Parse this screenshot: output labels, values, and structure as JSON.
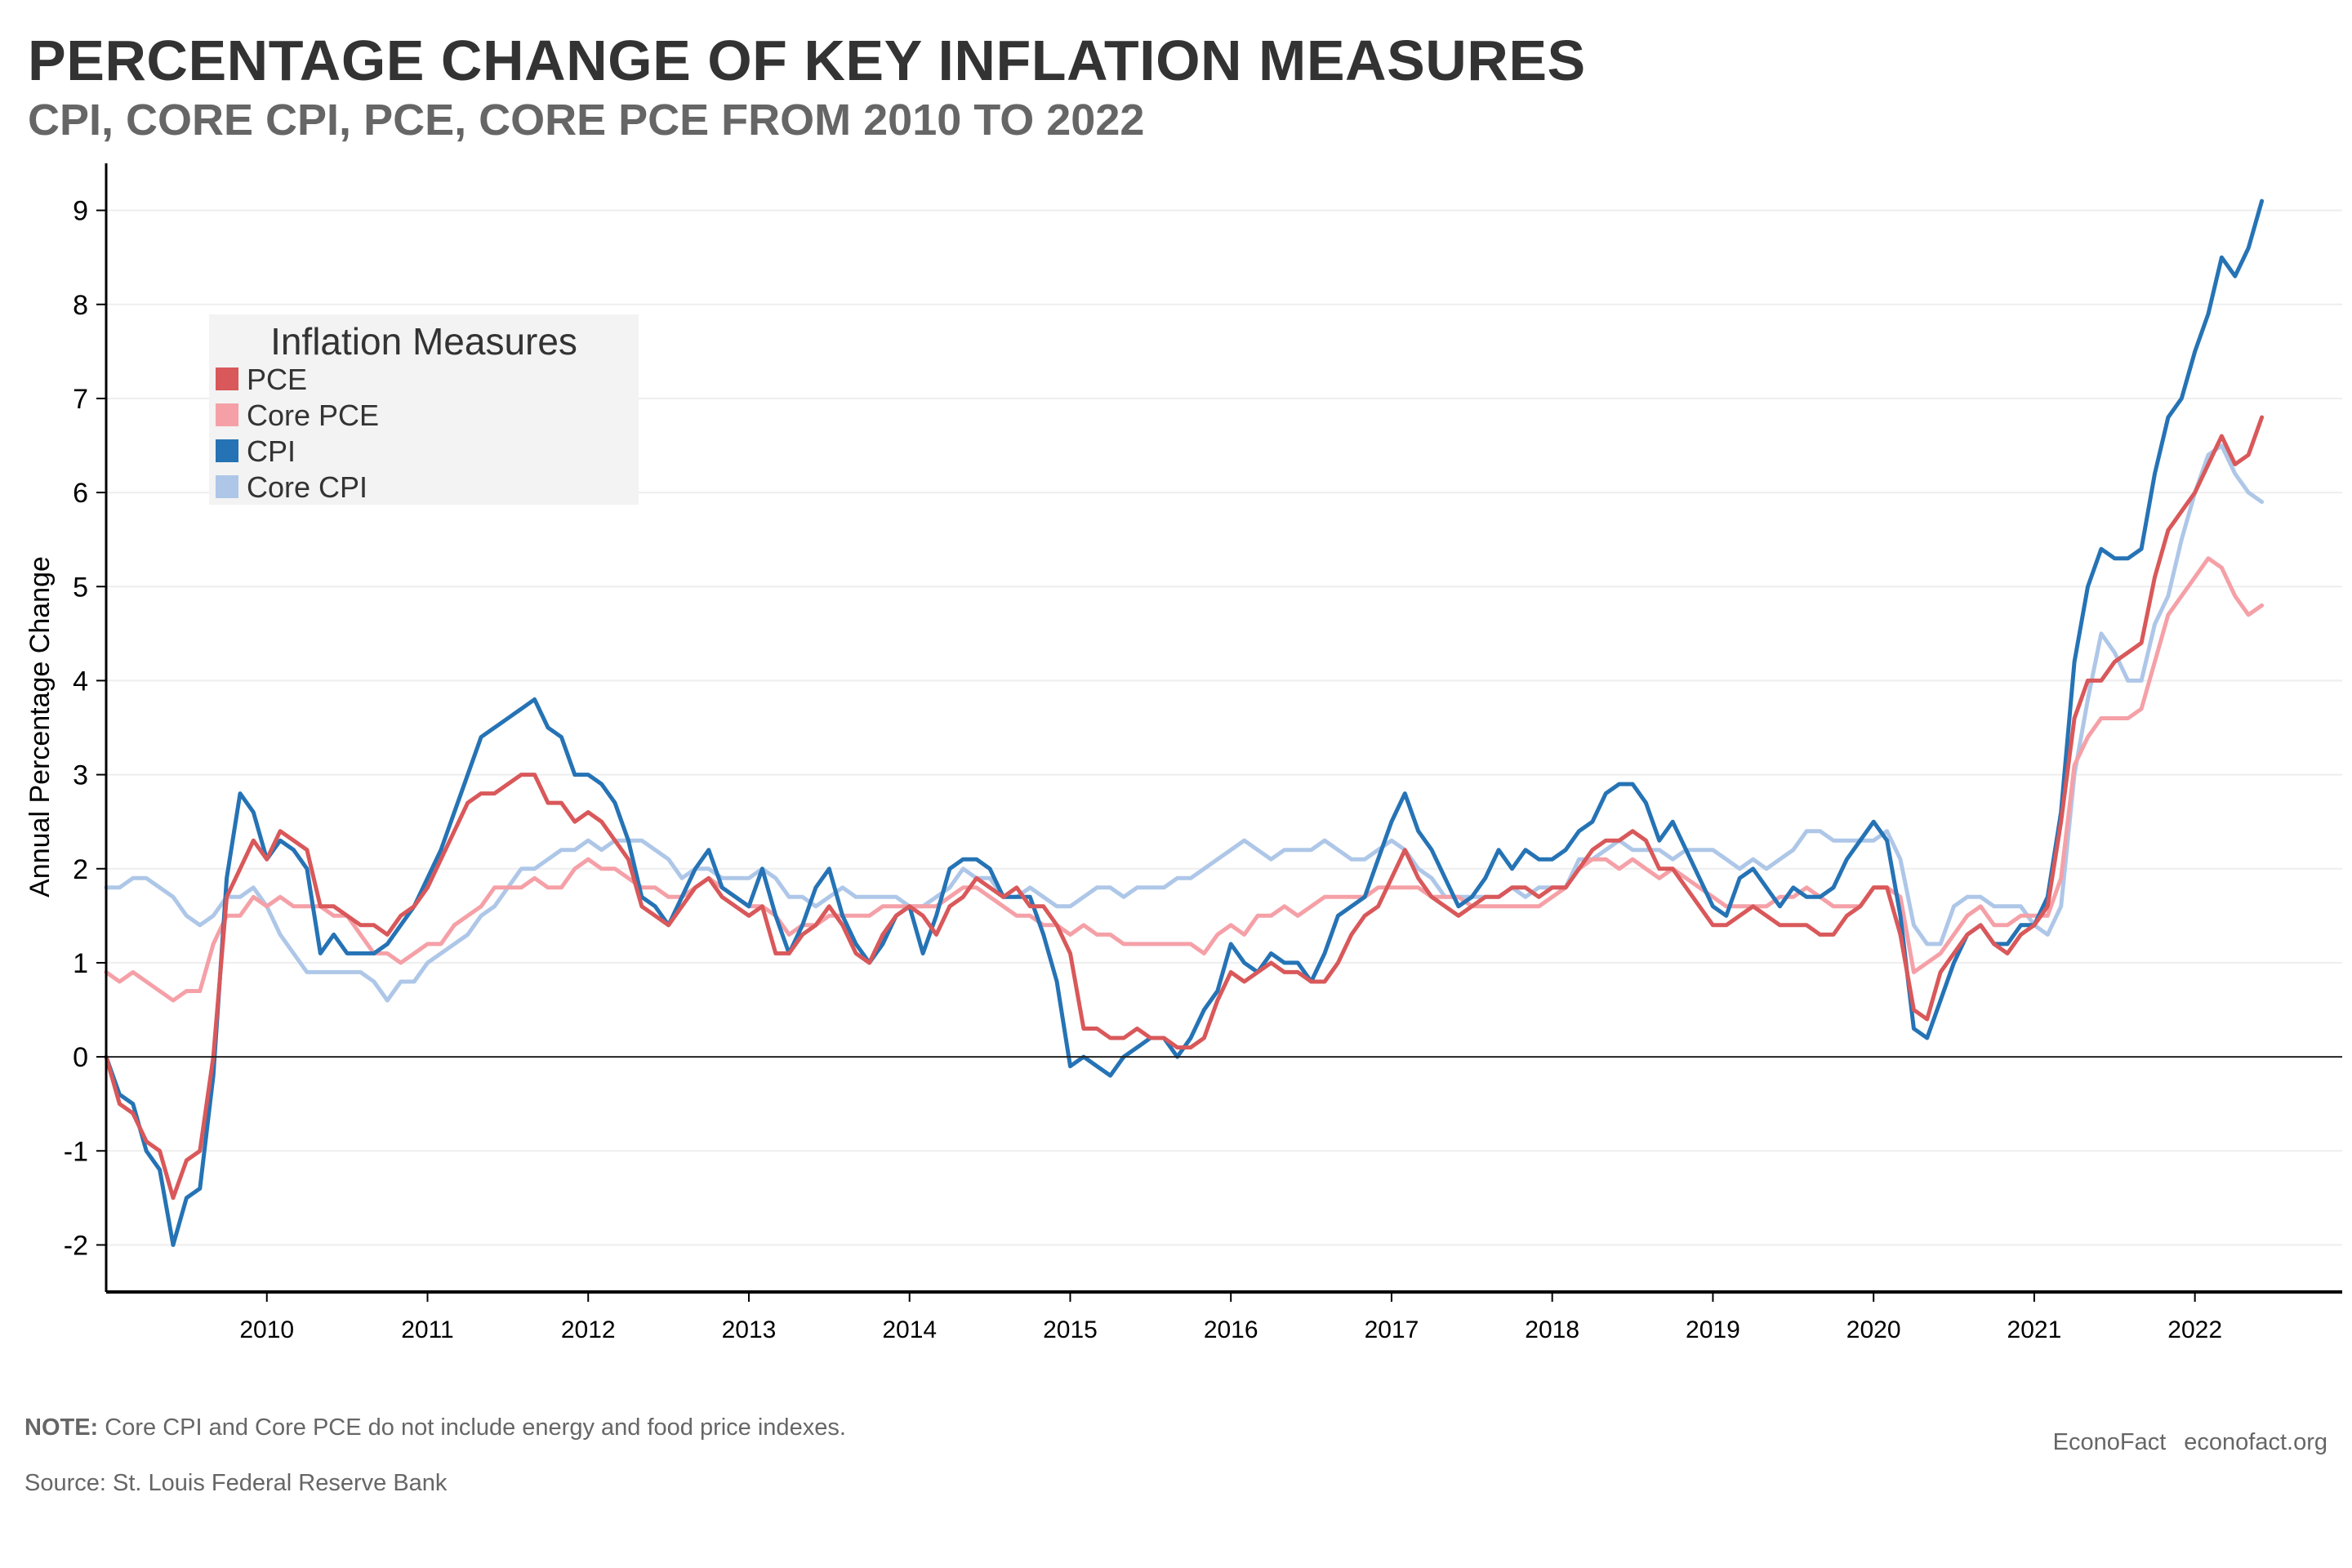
{
  "header": {
    "title": "PERCENTAGE CHANGE OF KEY INFLATION MEASURES",
    "subtitle": "CPI, CORE CPI, PCE, CORE PCE FROM 2010 TO 2022"
  },
  "footer": {
    "note_label": "NOTE:",
    "note_text": "Core CPI and Core PCE do not include energy and food price indexes.",
    "source": "Source: St. Louis Federal Reserve Bank",
    "brand": "EconoFact",
    "url": "econofact.org"
  },
  "chart_data": {
    "type": "line",
    "title": "PERCENTAGE CHANGE OF KEY INFLATION MEASURES",
    "subtitle": "CPI, CORE CPI, PCE, CORE PCE FROM 2010 TO 2022",
    "xlabel": "",
    "ylabel": "Annual Percentage Change",
    "x_start": "2009-01",
    "x_frequency": "monthly",
    "xlim": [
      "2009-01",
      "2022-12"
    ],
    "ylim": [
      -2.5,
      9.5
    ],
    "x_ticks": [
      "2010",
      "2011",
      "2012",
      "2013",
      "2014",
      "2015",
      "2016",
      "2017",
      "2018",
      "2019",
      "2020",
      "2021",
      "2022"
    ],
    "y_ticks": [
      -2,
      -1,
      0,
      1,
      2,
      3,
      4,
      5,
      6,
      7,
      8,
      9
    ],
    "grid": "horizontal",
    "zero_line": true,
    "legend": {
      "title": "Inflation Measures",
      "placement": "top-left"
    },
    "colors": {
      "PCE": "#d9585a",
      "Core PCE": "#f5a0a7",
      "CPI": "#2573b5",
      "Core CPI": "#aec7e8",
      "axis": "#000000",
      "grid": "#eeeeee",
      "legend_bg": "#f3f3f3"
    },
    "series": [
      {
        "name": "PCE",
        "values": [
          0.0,
          -0.5,
          -0.6,
          -0.9,
          -1.0,
          -1.5,
          -1.1,
          -1.0,
          0.0,
          1.7,
          2.0,
          2.3,
          2.1,
          2.4,
          2.3,
          2.2,
          1.6,
          1.6,
          1.5,
          1.4,
          1.4,
          1.3,
          1.5,
          1.6,
          1.8,
          2.1,
          2.4,
          2.7,
          2.8,
          2.8,
          2.9,
          3.0,
          3.0,
          2.7,
          2.7,
          2.5,
          2.6,
          2.5,
          2.3,
          2.1,
          1.6,
          1.5,
          1.4,
          1.6,
          1.8,
          1.9,
          1.7,
          1.6,
          1.5,
          1.6,
          1.1,
          1.1,
          1.3,
          1.4,
          1.6,
          1.4,
          1.1,
          1.0,
          1.3,
          1.5,
          1.6,
          1.5,
          1.3,
          1.6,
          1.7,
          1.9,
          1.8,
          1.7,
          1.8,
          1.6,
          1.6,
          1.4,
          1.1,
          0.3,
          0.3,
          0.2,
          0.2,
          0.3,
          0.2,
          0.2,
          0.1,
          0.1,
          0.2,
          0.6,
          0.9,
          0.8,
          0.9,
          1.0,
          0.9,
          0.9,
          0.8,
          0.8,
          1.0,
          1.3,
          1.5,
          1.6,
          1.9,
          2.2,
          1.9,
          1.7,
          1.6,
          1.5,
          1.6,
          1.7,
          1.7,
          1.8,
          1.8,
          1.7,
          1.8,
          1.8,
          2.0,
          2.2,
          2.3,
          2.3,
          2.4,
          2.3,
          2.0,
          2.0,
          1.8,
          1.6,
          1.4,
          1.4,
          1.5,
          1.6,
          1.5,
          1.4,
          1.4,
          1.4,
          1.3,
          1.3,
          1.5,
          1.6,
          1.8,
          1.8,
          1.3,
          0.5,
          0.4,
          0.9,
          1.1,
          1.3,
          1.4,
          1.2,
          1.1,
          1.3,
          1.4,
          1.6,
          2.5,
          3.6,
          4.0,
          4.0,
          4.2,
          4.3,
          4.4,
          5.1,
          5.6,
          5.8,
          6.0,
          6.3,
          6.6,
          6.3,
          6.4,
          6.8
        ]
      },
      {
        "name": "Core PCE",
        "values": [
          0.9,
          0.8,
          0.9,
          0.8,
          0.7,
          0.6,
          0.7,
          0.7,
          1.2,
          1.5,
          1.5,
          1.7,
          1.6,
          1.7,
          1.6,
          1.6,
          1.6,
          1.5,
          1.5,
          1.3,
          1.1,
          1.1,
          1.0,
          1.1,
          1.2,
          1.2,
          1.4,
          1.5,
          1.6,
          1.8,
          1.8,
          1.8,
          1.9,
          1.8,
          1.8,
          2.0,
          2.1,
          2.0,
          2.0,
          1.9,
          1.8,
          1.8,
          1.7,
          1.7,
          1.8,
          1.9,
          1.8,
          1.7,
          1.6,
          1.6,
          1.5,
          1.3,
          1.4,
          1.4,
          1.5,
          1.5,
          1.5,
          1.5,
          1.6,
          1.6,
          1.6,
          1.6,
          1.6,
          1.7,
          1.8,
          1.8,
          1.7,
          1.6,
          1.5,
          1.5,
          1.4,
          1.4,
          1.3,
          1.4,
          1.3,
          1.3,
          1.2,
          1.2,
          1.2,
          1.2,
          1.2,
          1.2,
          1.1,
          1.3,
          1.4,
          1.3,
          1.5,
          1.5,
          1.6,
          1.5,
          1.6,
          1.7,
          1.7,
          1.7,
          1.7,
          1.8,
          1.8,
          1.8,
          1.8,
          1.7,
          1.7,
          1.7,
          1.6,
          1.6,
          1.6,
          1.6,
          1.6,
          1.6,
          1.7,
          1.8,
          2.0,
          2.1,
          2.1,
          2.0,
          2.1,
          2.0,
          1.9,
          2.0,
          1.9,
          1.8,
          1.7,
          1.6,
          1.6,
          1.6,
          1.6,
          1.7,
          1.7,
          1.8,
          1.7,
          1.6,
          1.6,
          1.6,
          1.8,
          1.8,
          1.7,
          0.9,
          1.0,
          1.1,
          1.3,
          1.5,
          1.6,
          1.4,
          1.4,
          1.5,
          1.5,
          1.5,
          1.9,
          3.1,
          3.4,
          3.6,
          3.6,
          3.6,
          3.7,
          4.2,
          4.7,
          4.9,
          5.1,
          5.3,
          5.2,
          4.9,
          4.7,
          4.8
        ]
      },
      {
        "name": "CPI",
        "values": [
          0.0,
          -0.4,
          -0.5,
          -1.0,
          -1.2,
          -2.0,
          -1.5,
          -1.4,
          -0.2,
          1.9,
          2.8,
          2.6,
          2.1,
          2.3,
          2.2,
          2.0,
          1.1,
          1.3,
          1.1,
          1.1,
          1.1,
          1.2,
          1.4,
          1.6,
          1.9,
          2.2,
          2.6,
          3.0,
          3.4,
          3.5,
          3.6,
          3.7,
          3.8,
          3.5,
          3.4,
          3.0,
          3.0,
          2.9,
          2.7,
          2.3,
          1.7,
          1.6,
          1.4,
          1.7,
          2.0,
          2.2,
          1.8,
          1.7,
          1.6,
          2.0,
          1.5,
          1.1,
          1.4,
          1.8,
          2.0,
          1.5,
          1.2,
          1.0,
          1.2,
          1.5,
          1.6,
          1.1,
          1.5,
          2.0,
          2.1,
          2.1,
          2.0,
          1.7,
          1.7,
          1.7,
          1.3,
          0.8,
          -0.1,
          0.0,
          -0.1,
          -0.2,
          0.0,
          0.1,
          0.2,
          0.2,
          0.0,
          0.2,
          0.5,
          0.7,
          1.2,
          1.0,
          0.9,
          1.1,
          1.0,
          1.0,
          0.8,
          1.1,
          1.5,
          1.6,
          1.7,
          2.1,
          2.5,
          2.8,
          2.4,
          2.2,
          1.9,
          1.6,
          1.7,
          1.9,
          2.2,
          2.0,
          2.2,
          2.1,
          2.1,
          2.2,
          2.4,
          2.5,
          2.8,
          2.9,
          2.9,
          2.7,
          2.3,
          2.5,
          2.2,
          1.9,
          1.6,
          1.5,
          1.9,
          2.0,
          1.8,
          1.6,
          1.8,
          1.7,
          1.7,
          1.8,
          2.1,
          2.3,
          2.5,
          2.3,
          1.5,
          0.3,
          0.2,
          0.6,
          1.0,
          1.3,
          1.4,
          1.2,
          1.2,
          1.4,
          1.4,
          1.7,
          2.6,
          4.2,
          5.0,
          5.4,
          5.3,
          5.3,
          5.4,
          6.2,
          6.8,
          7.0,
          7.5,
          7.9,
          8.5,
          8.3,
          8.6,
          9.1
        ]
      },
      {
        "name": "Core CPI",
        "values": [
          1.8,
          1.8,
          1.9,
          1.9,
          1.8,
          1.7,
          1.5,
          1.4,
          1.5,
          1.7,
          1.7,
          1.8,
          1.6,
          1.3,
          1.1,
          0.9,
          0.9,
          0.9,
          0.9,
          0.9,
          0.8,
          0.6,
          0.8,
          0.8,
          1.0,
          1.1,
          1.2,
          1.3,
          1.5,
          1.6,
          1.8,
          2.0,
          2.0,
          2.1,
          2.2,
          2.2,
          2.3,
          2.2,
          2.3,
          2.3,
          2.3,
          2.2,
          2.1,
          1.9,
          2.0,
          2.0,
          1.9,
          1.9,
          1.9,
          2.0,
          1.9,
          1.7,
          1.7,
          1.6,
          1.7,
          1.8,
          1.7,
          1.7,
          1.7,
          1.7,
          1.6,
          1.6,
          1.7,
          1.8,
          2.0,
          1.9,
          1.9,
          1.7,
          1.7,
          1.8,
          1.7,
          1.6,
          1.6,
          1.7,
          1.8,
          1.8,
          1.7,
          1.8,
          1.8,
          1.8,
          1.9,
          1.9,
          2.0,
          2.1,
          2.2,
          2.3,
          2.2,
          2.1,
          2.2,
          2.2,
          2.2,
          2.3,
          2.2,
          2.1,
          2.1,
          2.2,
          2.3,
          2.2,
          2.0,
          1.9,
          1.7,
          1.7,
          1.7,
          1.7,
          1.7,
          1.8,
          1.7,
          1.8,
          1.8,
          1.8,
          2.1,
          2.1,
          2.2,
          2.3,
          2.2,
          2.2,
          2.2,
          2.1,
          2.2,
          2.2,
          2.2,
          2.1,
          2.0,
          2.1,
          2.0,
          2.1,
          2.2,
          2.4,
          2.4,
          2.3,
          2.3,
          2.3,
          2.3,
          2.4,
          2.1,
          1.4,
          1.2,
          1.2,
          1.6,
          1.7,
          1.7,
          1.6,
          1.6,
          1.6,
          1.4,
          1.3,
          1.6,
          3.0,
          3.8,
          4.5,
          4.3,
          4.0,
          4.0,
          4.6,
          4.9,
          5.5,
          6.0,
          6.4,
          6.5,
          6.2,
          6.0,
          5.9
        ]
      }
    ]
  }
}
